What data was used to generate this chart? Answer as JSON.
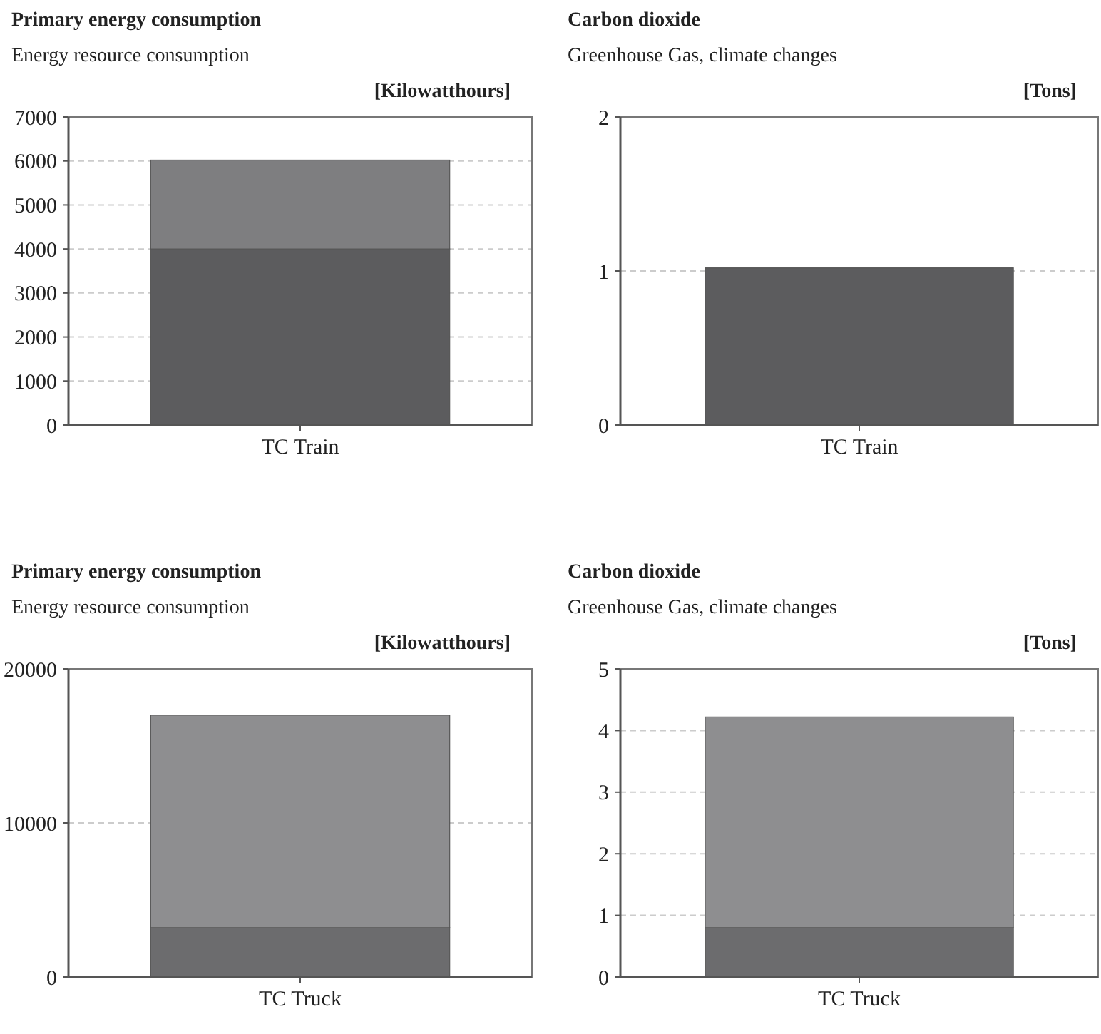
{
  "chart_data": [
    {
      "type": "bar",
      "title": "Primary energy consumption",
      "subtitle": "Energy resource consumption",
      "ylabel": "[Kilowatthours]",
      "categories": [
        "TC Train"
      ],
      "stacked": true,
      "series": [
        {
          "color": "#5c5c5e",
          "values": [
            4000
          ]
        },
        {
          "color": "#7e7e80",
          "values": [
            2020
          ]
        }
      ],
      "ylim": [
        0,
        7000
      ],
      "yticks": [
        0,
        1000,
        2000,
        3000,
        4000,
        5000,
        6000,
        7000
      ],
      "grid": "y"
    },
    {
      "type": "bar",
      "title": "Carbon dioxide",
      "subtitle": "Greenhouse Gas, climate changes",
      "ylabel": "[Tons]",
      "categories": [
        "TC Train"
      ],
      "stacked": true,
      "series": [
        {
          "color": "#5c5c5e",
          "values": [
            1.02
          ]
        }
      ],
      "ylim": [
        0,
        2
      ],
      "yticks": [
        0,
        1,
        2
      ],
      "grid": "y"
    },
    {
      "type": "bar",
      "title": "Primary energy consumption",
      "subtitle": "Energy resource consumption",
      "ylabel": "[Kilowatthours]",
      "categories": [
        "TC Truck"
      ],
      "stacked": true,
      "series": [
        {
          "color": "#6c6c6e",
          "values": [
            3200
          ]
        },
        {
          "color": "#8e8e90",
          "values": [
            13800
          ]
        }
      ],
      "ylim": [
        0,
        20000
      ],
      "yticks": [
        0,
        10000,
        20000
      ],
      "grid": "y"
    },
    {
      "type": "bar",
      "title": "Carbon dioxide",
      "subtitle": "Greenhouse Gas, climate changes",
      "ylabel": "[Tons]",
      "categories": [
        "TC Truck"
      ],
      "stacked": true,
      "series": [
        {
          "color": "#6c6c6e",
          "values": [
            0.8
          ]
        },
        {
          "color": "#8e8e90",
          "values": [
            3.42
          ]
        }
      ],
      "ylim": [
        0,
        5
      ],
      "yticks": [
        0,
        1,
        2,
        3,
        4,
        5
      ],
      "grid": "y"
    }
  ]
}
